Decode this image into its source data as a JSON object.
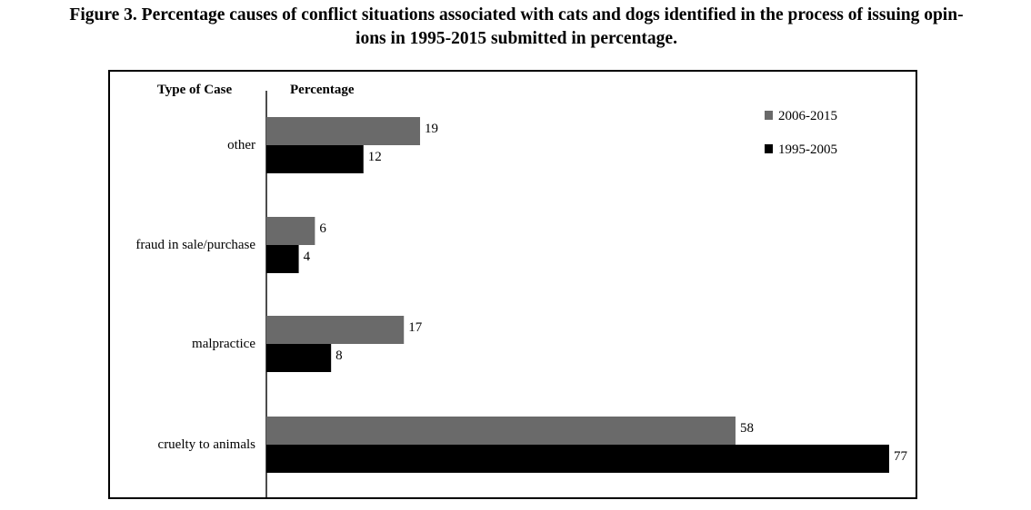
{
  "figure": {
    "title_line1": "Figure 3. Percentage causes of conflict situations associated with cats and dogs identified in the process of issuing opin-",
    "title_line2": "ions in 1995-2015 submitted in percentage."
  },
  "chart_data": {
    "type": "bar",
    "orientation": "horizontal",
    "category_header": "Type of Case",
    "value_header": "Percentage",
    "categories": [
      "other",
      "fraud in sale/purchase",
      "malpractice",
      "cruelty to animals"
    ],
    "series": [
      {
        "name": "2006-2015",
        "color": "#6a6a6a",
        "values": [
          19,
          6,
          17,
          58
        ]
      },
      {
        "name": "1995-2005",
        "color": "#000000",
        "values": [
          12,
          4,
          8,
          77
        ]
      }
    ],
    "xlim": [
      0,
      77
    ],
    "grid": false,
    "legend_position": "top-right",
    "data_labels": true
  }
}
